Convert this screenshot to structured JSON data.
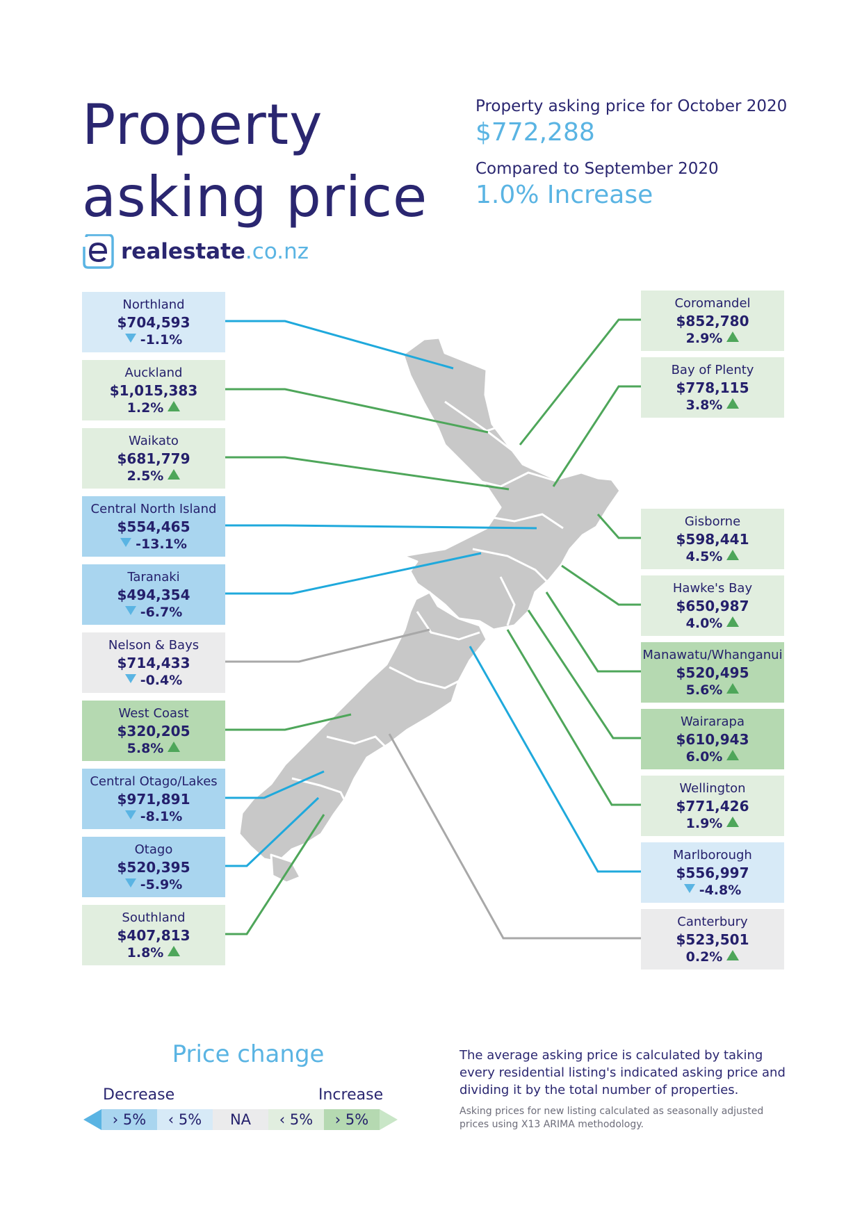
{
  "title": {
    "line1": "Property",
    "line2": "asking price"
  },
  "summary": {
    "label1": "Property asking price for October 2020",
    "value1": "$772,288",
    "label2": "Compared to September 2020",
    "value2": "1.0% Increase"
  },
  "brand": {
    "name": "realestate",
    "tld": ".co.nz"
  },
  "colors": {
    "decrease_gt5": "#a9d5ef",
    "decrease_lt5": "#d7eaf7",
    "na": "#ebebec",
    "increase_lt5": "#e1eedf",
    "increase_gt5": "#b5d9b1",
    "line_blue": "#1fa9dc",
    "line_green": "#4ea65a",
    "line_grey": "#a8a8a8",
    "land": "#c8c8c8"
  },
  "regions_left": [
    {
      "name": "Northland",
      "price": "$704,593",
      "change": "-1.1%",
      "direction": "down",
      "category": "decrease_lt5"
    },
    {
      "name": "Auckland",
      "price": "$1,015,383",
      "change": "1.2%",
      "direction": "up",
      "category": "increase_lt5"
    },
    {
      "name": "Waikato",
      "price": "$681,779",
      "change": "2.5%",
      "direction": "up",
      "category": "increase_lt5"
    },
    {
      "name": "Central North Island",
      "price": "$554,465",
      "change": "-13.1%",
      "direction": "down",
      "category": "decrease_gt5"
    },
    {
      "name": "Taranaki",
      "price": "$494,354",
      "change": "-6.7%",
      "direction": "down",
      "category": "decrease_gt5"
    },
    {
      "name": "Nelson & Bays",
      "price": "$714,433",
      "change": "-0.4%",
      "direction": "down",
      "category": "na"
    },
    {
      "name": "West Coast",
      "price": "$320,205",
      "change": "5.8%",
      "direction": "up",
      "category": "increase_gt5"
    },
    {
      "name": "Central Otago/Lakes",
      "price": "$971,891",
      "change": "-8.1%",
      "direction": "down",
      "category": "decrease_gt5"
    },
    {
      "name": "Otago",
      "price": "$520,395",
      "change": "-5.9%",
      "direction": "down",
      "category": "decrease_gt5"
    },
    {
      "name": "Southland",
      "price": "$407,813",
      "change": "1.8%",
      "direction": "up",
      "category": "increase_lt5"
    }
  ],
  "regions_right": [
    {
      "name": "Coromandel",
      "price": "$852,780",
      "change": "2.9%",
      "direction": "up",
      "category": "increase_lt5"
    },
    {
      "name": "Bay of Plenty",
      "price": "$778,115",
      "change": "3.8%",
      "direction": "up",
      "category": "increase_lt5"
    },
    {
      "name": "Gisborne",
      "price": "$598,441",
      "change": "4.5%",
      "direction": "up",
      "category": "increase_lt5"
    },
    {
      "name": "Hawke's Bay",
      "price": "$650,987",
      "change": "4.0%",
      "direction": "up",
      "category": "increase_lt5"
    },
    {
      "name": "Manawatu/Whanganui",
      "price": "$520,495",
      "change": "5.6%",
      "direction": "up",
      "category": "increase_gt5"
    },
    {
      "name": "Wairarapa",
      "price": "$610,943",
      "change": "6.0%",
      "direction": "up",
      "category": "increase_gt5"
    },
    {
      "name": "Wellington",
      "price": "$771,426",
      "change": "1.9%",
      "direction": "up",
      "category": "increase_lt5"
    },
    {
      "name": "Marlborough",
      "price": "$556,997",
      "change": "-4.8%",
      "direction": "down",
      "category": "decrease_lt5"
    },
    {
      "name": "Canterbury",
      "price": "$523,501",
      "change": "0.2%",
      "direction": "up",
      "category": "na"
    }
  ],
  "legend": {
    "title": "Price change",
    "decrease": "Decrease",
    "increase": "Increase",
    "segments": [
      {
        "label": "› 5%",
        "category": "decrease_gt5"
      },
      {
        "label": "‹ 5%",
        "category": "decrease_lt5"
      },
      {
        "label": "NA",
        "category": "na"
      },
      {
        "label": "‹ 5%",
        "category": "increase_lt5"
      },
      {
        "label": "› 5%",
        "category": "increase_gt5"
      }
    ]
  },
  "notes": {
    "main": "The average asking price is calculated by taking every residential listing's indicated asking price and dividing it by the total number of properties.",
    "small": "Asking prices for new listing calculated as seasonally adjusted prices using X13 ARIMA methodology."
  }
}
